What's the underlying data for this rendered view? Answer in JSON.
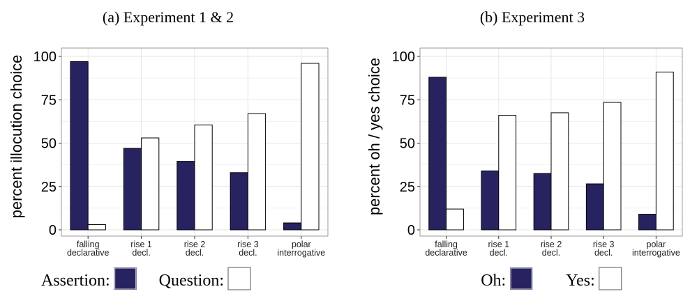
{
  "colors": {
    "assertion_oh": "#272361",
    "question_yes": "#ffffff",
    "grid": "#e6e6e6",
    "panel_border": "#999999",
    "text": "#000000"
  },
  "chart_data": [
    {
      "type": "bar",
      "title": "(a) Experiment 1 & 2",
      "ylabel": "percent illocution choice",
      "xlabel": "",
      "ylim": [
        0,
        100
      ],
      "yticks": [
        0,
        25,
        50,
        75,
        100
      ],
      "grid": true,
      "legend_position": "bottom",
      "categories": [
        [
          "falling",
          "declarative"
        ],
        [
          "rise 1",
          "decl."
        ],
        [
          "rise 2",
          "decl."
        ],
        [
          "rise 3",
          "decl."
        ],
        [
          "polar",
          "interrogative"
        ]
      ],
      "series": [
        {
          "name": "Assertion:",
          "color": "#272361",
          "values": [
            97,
            47,
            39.5,
            33,
            4
          ]
        },
        {
          "name": "Question:",
          "color": "#ffffff",
          "values": [
            3,
            53,
            60.5,
            67,
            96
          ]
        }
      ]
    },
    {
      "type": "bar",
      "title": "(b) Experiment 3",
      "ylabel": "percent oh / yes choice",
      "xlabel": "",
      "ylim": [
        0,
        100
      ],
      "yticks": [
        0,
        25,
        50,
        75,
        100
      ],
      "grid": true,
      "legend_position": "bottom",
      "categories": [
        [
          "falling",
          "declarative"
        ],
        [
          "rise 1",
          "decl."
        ],
        [
          "rise 2",
          "decl."
        ],
        [
          "rise 3",
          "decl."
        ],
        [
          "polar",
          "interrogative"
        ]
      ],
      "series": [
        {
          "name": "Oh:",
          "color": "#272361",
          "values": [
            88,
            34,
            32.5,
            26.5,
            9
          ]
        },
        {
          "name": "Yes:",
          "color": "#ffffff",
          "values": [
            12,
            66,
            67.5,
            73.5,
            91
          ]
        }
      ]
    }
  ]
}
